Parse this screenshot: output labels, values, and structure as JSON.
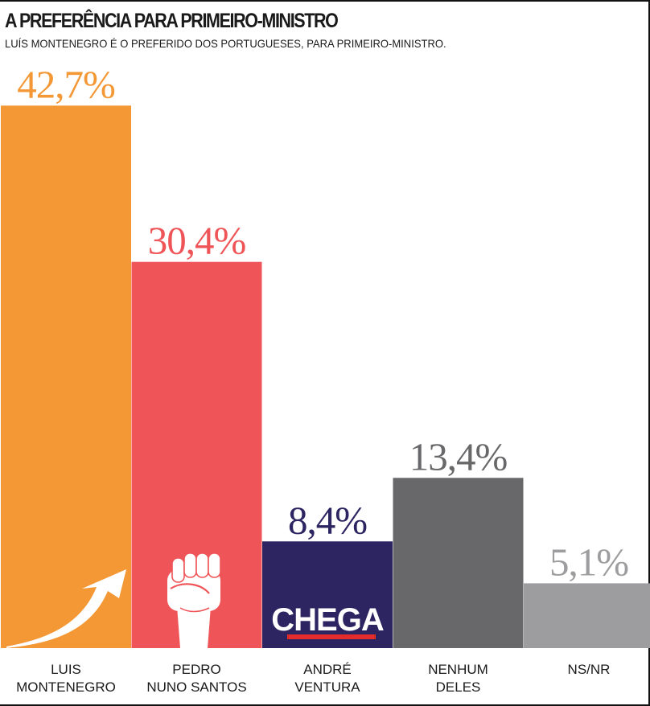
{
  "header": {
    "title": "A PREFERÊNCIA PARA PRIMEIRO-MINISTRO",
    "subtitle": "LUÍS MONTENEGRO É O PREFERIDO DOS PORTUGUESES, PARA PRIMEIRO-MINISTRO."
  },
  "chart_data": {
    "type": "bar",
    "title": "A PREFERÊNCIA PARA PRIMEIRO-MINISTRO",
    "subtitle": "LUÍS MONTENEGRO É O PREFERIDO DOS PORTUGUESES, PARA PRIMEIRO-MINISTRO.",
    "xlabel": "",
    "ylabel": "",
    "unit": "%",
    "grid": false,
    "legend": "none",
    "categories": [
      [
        "LUIS",
        "MONTENEGRO"
      ],
      [
        "PEDRO",
        "NUNO SANTOS"
      ],
      [
        "ANDRÉ",
        "VENTURA"
      ],
      [
        "NENHUM",
        "DELES"
      ],
      [
        "NS/NR"
      ]
    ],
    "values": [
      42.7,
      30.4,
      8.4,
      13.4,
      5.1
    ],
    "value_labels": [
      "42,7%",
      "30,4%",
      "8,4%",
      "13,4%",
      "5,1%"
    ],
    "colors": [
      "#f39835",
      "#ef5558",
      "#2c2561",
      "#68686a",
      "#9d9d9f"
    ],
    "label_colors": [
      "#f39835",
      "#ef5558",
      "#2c2561",
      "#68686a",
      "#9d9d9f"
    ],
    "icons": [
      "arrow-up-icon",
      "raised-fist-icon",
      "chega-logo",
      "",
      ""
    ],
    "logo_text": "CHEGA"
  }
}
